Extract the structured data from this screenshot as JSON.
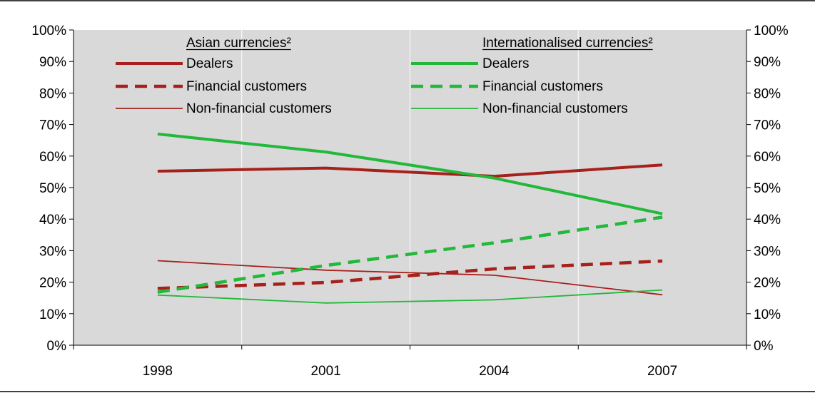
{
  "chart_data": {
    "type": "line",
    "title": "",
    "xlabel": "",
    "ylabel": "",
    "ylim": [
      0,
      100
    ],
    "y_ticks": [
      "0%",
      "10%",
      "20%",
      "30%",
      "40%",
      "50%",
      "60%",
      "70%",
      "80%",
      "90%",
      "100%"
    ],
    "right_axis_ticks": [
      "0%",
      "10%",
      "20%",
      "30%",
      "40%",
      "50%",
      "60%",
      "70%",
      "80%",
      "90%",
      "100%"
    ],
    "categories": [
      "1998",
      "2001",
      "2004",
      "2007"
    ],
    "grid": "vertical",
    "legend_position": "top",
    "legend_groups": [
      {
        "heading": "Asian currencies²"
      },
      {
        "heading": "Internationalised currencies²"
      }
    ],
    "series": [
      {
        "name": "Dealers",
        "group": 0,
        "color": "#a6201c",
        "style": "solid-thick",
        "values": [
          55.2,
          56.2,
          53.6,
          57.2
        ]
      },
      {
        "name": "Financial customers",
        "group": 0,
        "color": "#a6201c",
        "style": "dashed",
        "values": [
          18,
          19.9,
          24.2,
          26.7
        ]
      },
      {
        "name": "Non-financial customers",
        "group": 0,
        "color": "#a6201c",
        "style": "solid-thin",
        "values": [
          26.8,
          23.8,
          22.2,
          16
        ]
      },
      {
        "name": "Dealers",
        "group": 1,
        "color": "#22b83a",
        "style": "solid-thick",
        "values": [
          67,
          61.3,
          53,
          41.7
        ]
      },
      {
        "name": "Financial customers",
        "group": 1,
        "color": "#22b83a",
        "style": "dashed",
        "values": [
          16.8,
          25.3,
          32.5,
          40.6
        ]
      },
      {
        "name": "Non-financial customers",
        "group": 1,
        "color": "#22b83a",
        "style": "solid-thin",
        "values": [
          15.9,
          13.4,
          14.4,
          17.5
        ]
      }
    ]
  }
}
